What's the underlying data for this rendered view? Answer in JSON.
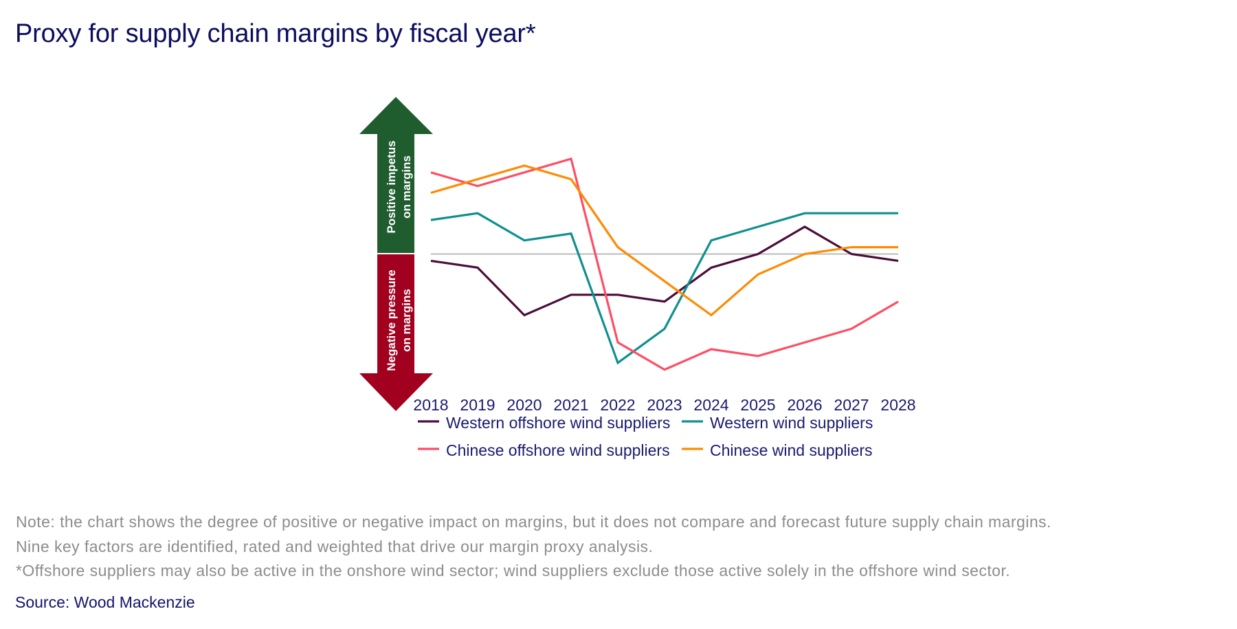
{
  "title": "Proxy for supply chain margins by fiscal year*",
  "arrow": {
    "positive_line1": "Positive impetus",
    "positive_line2": "on margins",
    "negative_line1": "Negative pressure",
    "negative_line2": "on margins",
    "positive_color": "#1f5c2e",
    "negative_color": "#a1001f"
  },
  "notes": [
    "Note: the chart shows the degree of positive or negative impact on margins, but it does not compare and forecast future supply chain margins.",
    "Nine key factors are identified, rated and weighted that drive our margin proxy analysis.",
    "*Offshore suppliers may also be active in the onshore wind sector; wind suppliers exclude those active solely in the offshore wind sector."
  ],
  "source": "Source: Wood Mackenzie",
  "chart_data": {
    "type": "line",
    "title": "Proxy for supply chain margins by fiscal year*",
    "xlabel": "",
    "ylabel": "Positive impetus on margins (up) / Negative pressure on margins (down)",
    "x": [
      "2018",
      "2019",
      "2020",
      "2021",
      "2022",
      "2023",
      "2024",
      "2025",
      "2026",
      "2027",
      "2028"
    ],
    "ylim": [
      -23,
      23
    ],
    "zero_line": 0,
    "grid": false,
    "legend_position": "bottom",
    "series": [
      {
        "name": "Western offshore wind suppliers",
        "color": "#4a0d3a",
        "values": [
          -1,
          -2,
          -9,
          -6,
          -6,
          -7,
          -2,
          0,
          4,
          0,
          -1
        ]
      },
      {
        "name": "Western wind suppliers",
        "color": "#0f8f8f",
        "values": [
          5,
          6,
          2,
          3,
          -16,
          -11,
          2,
          4,
          6,
          6,
          6
        ]
      },
      {
        "name": "Chinese offshore wind suppliers",
        "color": "#ff4d63",
        "values": [
          12,
          10,
          12,
          14,
          -13,
          -17,
          -14,
          -15,
          -13,
          -11,
          -7
        ]
      },
      {
        "name": "Chinese wind suppliers",
        "color": "#ff8a00",
        "values": [
          9,
          11,
          13,
          11,
          1,
          -4,
          -9,
          -3,
          0,
          1,
          1
        ]
      }
    ],
    "legend_order": [
      0,
      1,
      2,
      3
    ]
  }
}
